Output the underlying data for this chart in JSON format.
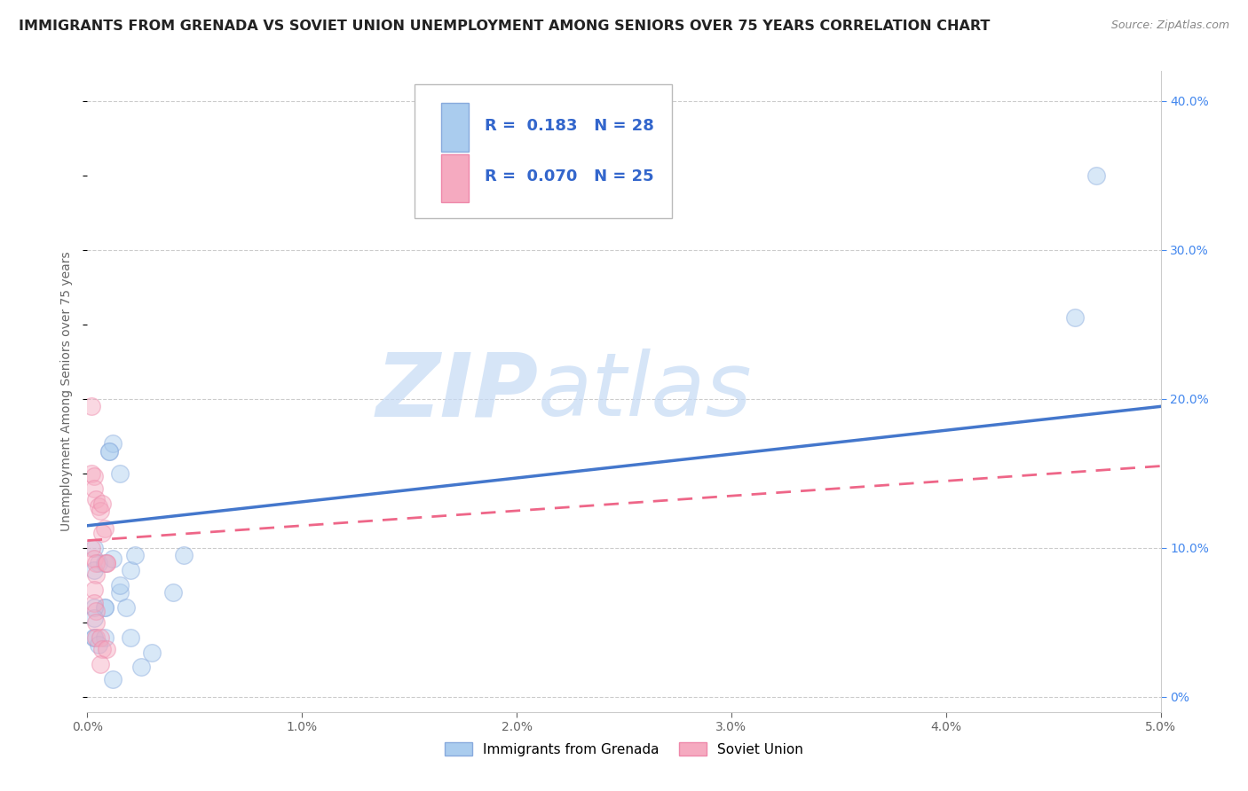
{
  "title": "IMMIGRANTS FROM GRENADA VS SOVIET UNION UNEMPLOYMENT AMONG SENIORS OVER 75 YEARS CORRELATION CHART",
  "source": "Source: ZipAtlas.com",
  "ylabel": "Unemployment Among Seniors over 75 years",
  "legend_grenada": {
    "R": 0.183,
    "N": 28
  },
  "legend_soviet": {
    "R": 0.07,
    "N": 25
  },
  "watermark_zip": "ZIP",
  "watermark_atlas": "atlas",
  "background_color": "#ffffff",
  "grenada_scatter_x": [
    0.0003,
    0.0005,
    0.0003,
    0.0008,
    0.001,
    0.0012,
    0.001,
    0.0015,
    0.0008,
    0.0012,
    0.0015,
    0.0015,
    0.0008,
    0.0003,
    0.0003,
    0.0003,
    0.0003,
    0.0008,
    0.0018,
    0.002,
    0.0022,
    0.0005,
    0.0012,
    0.002,
    0.0025,
    0.0045,
    0.004,
    0.003
  ],
  "grenada_scatter_y": [
    0.1,
    0.09,
    0.085,
    0.06,
    0.165,
    0.17,
    0.165,
    0.15,
    0.09,
    0.093,
    0.07,
    0.075,
    0.06,
    0.06,
    0.053,
    0.04,
    0.04,
    0.04,
    0.06,
    0.085,
    0.095,
    0.035,
    0.012,
    0.04,
    0.02,
    0.095,
    0.07,
    0.03
  ],
  "soviet_scatter_x": [
    0.0002,
    0.0002,
    0.0003,
    0.0003,
    0.0004,
    0.0005,
    0.0006,
    0.0007,
    0.0008,
    0.0002,
    0.0003,
    0.0004,
    0.0004,
    0.0007,
    0.0009,
    0.0003,
    0.0003,
    0.0004,
    0.0004,
    0.0004,
    0.0006,
    0.0007,
    0.0009,
    0.0009,
    0.0006
  ],
  "soviet_scatter_y": [
    0.195,
    0.15,
    0.148,
    0.14,
    0.133,
    0.128,
    0.125,
    0.13,
    0.113,
    0.1,
    0.093,
    0.09,
    0.082,
    0.11,
    0.09,
    0.072,
    0.063,
    0.058,
    0.05,
    0.04,
    0.04,
    0.032,
    0.032,
    0.09,
    0.022
  ],
  "xlim": [
    0.0,
    0.05
  ],
  "ylim": [
    -0.01,
    0.42
  ],
  "grenada_line_x": [
    0.0,
    0.05
  ],
  "grenada_line_y": [
    0.115,
    0.195
  ],
  "soviet_line_x": [
    0.0,
    0.05
  ],
  "soviet_line_y": [
    0.105,
    0.155
  ],
  "scatter_size": 200,
  "scatter_alpha": 0.45,
  "grenada_color": "#aaccee",
  "soviet_color": "#f5aac0",
  "grenada_edge_color": "#88aadd",
  "soviet_edge_color": "#ee88aa",
  "grenada_line_color": "#4477cc",
  "soviet_line_color": "#ee6688",
  "title_fontsize": 11.5,
  "axis_label_fontsize": 10,
  "tick_label_fontsize": 10,
  "right_tick_color": "#4488ee",
  "grid_color": "#cccccc",
  "y_ticks": [
    0.0,
    0.1,
    0.2,
    0.3,
    0.4
  ],
  "y_tick_labels": [
    "0%",
    "10.0%",
    "20.0%",
    "30.0%",
    "40.0%"
  ],
  "x_ticks": [
    0.0,
    0.01,
    0.02,
    0.03,
    0.04,
    0.05
  ],
  "x_tick_labels": [
    "0.0%",
    "1.0%",
    "2.0%",
    "3.0%",
    "4.0%",
    "5.0%"
  ]
}
